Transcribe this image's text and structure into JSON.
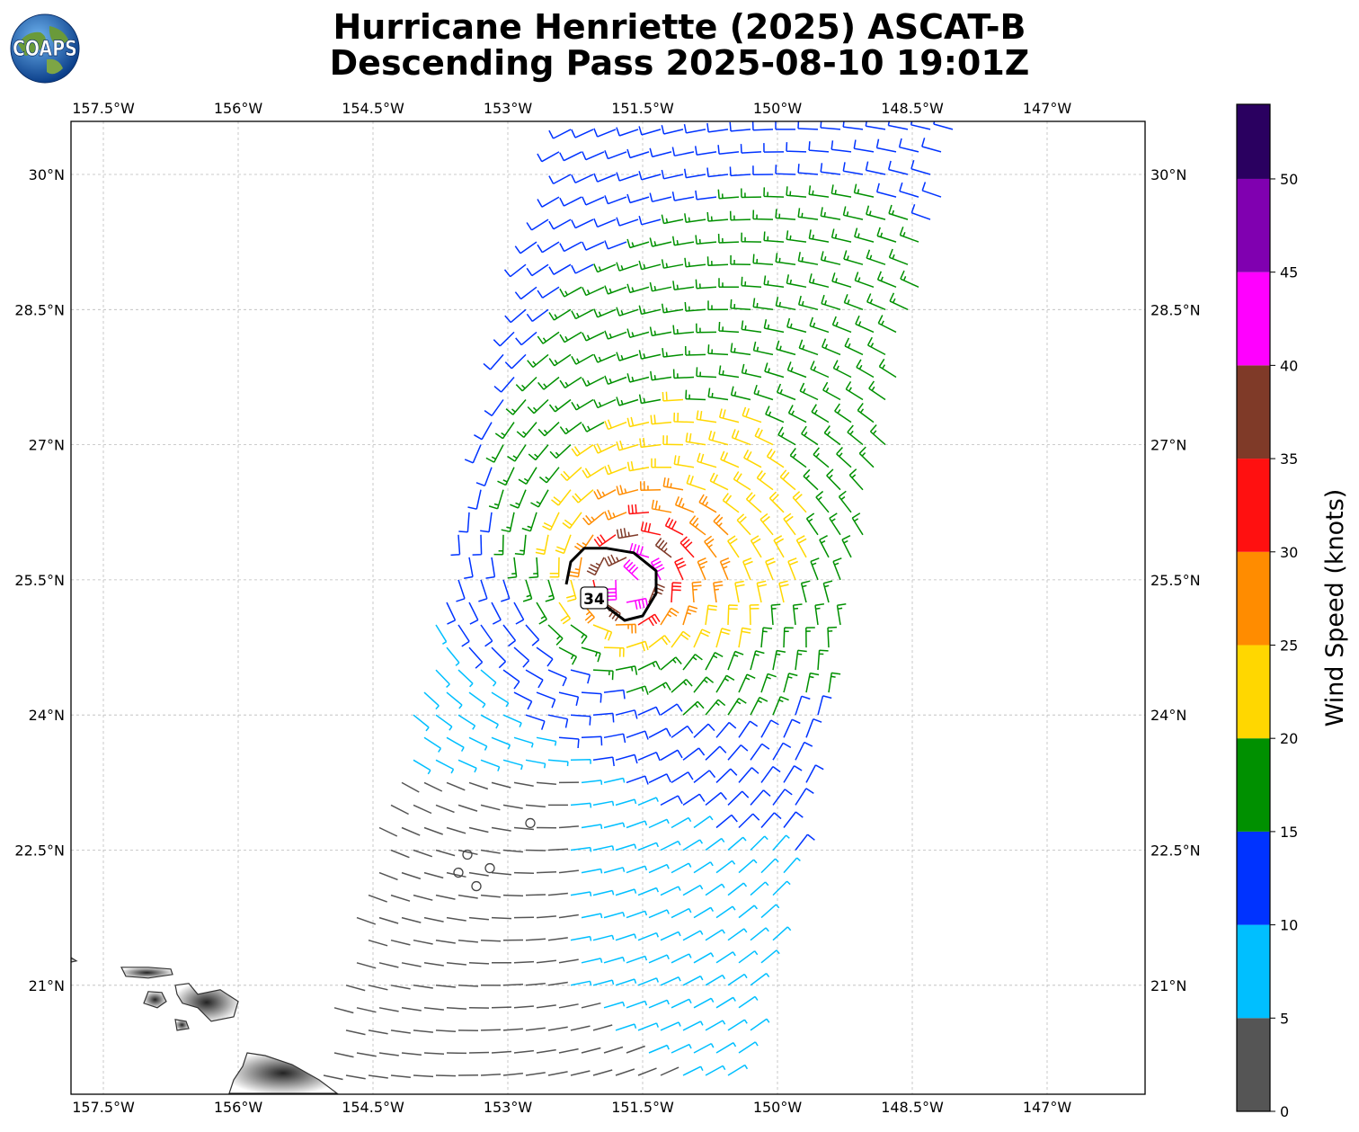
{
  "header": {
    "title_line1": "Hurricane Henriette (2025) ASCAT-B",
    "title_line2": "Descending Pass 2025-08-10 19:01Z",
    "logo_text": "COAPS"
  },
  "map": {
    "lon_range": [
      -158.0,
      -146.0
    ],
    "lat_range": [
      19.8,
      30.6
    ],
    "lon_ticks": [
      {
        "value": -157.5,
        "label": "157.5°W"
      },
      {
        "value": -156.0,
        "label": "156°W"
      },
      {
        "value": -154.5,
        "label": "154.5°W"
      },
      {
        "value": -153.0,
        "label": "153°W"
      },
      {
        "value": -151.5,
        "label": "151.5°W"
      },
      {
        "value": -150.0,
        "label": "150°W"
      },
      {
        "value": -148.5,
        "label": "148.5°W"
      },
      {
        "value": -147.0,
        "label": "147°W"
      }
    ],
    "lat_ticks": [
      {
        "value": 30.0,
        "label": "30°N"
      },
      {
        "value": 28.5,
        "label": "28.5°N"
      },
      {
        "value": 27.0,
        "label": "27°N"
      },
      {
        "value": 25.5,
        "label": "25.5°N"
      },
      {
        "value": 24.0,
        "label": "24°N"
      },
      {
        "value": 22.5,
        "label": "22.5°N"
      },
      {
        "value": 21.0,
        "label": "21°N"
      }
    ],
    "storm_center": {
      "lon": -151.65,
      "lat": 25.45
    },
    "contour_label": "34",
    "swath": {
      "corners": [
        {
          "lon": -152.4,
          "lat": 30.55
        },
        {
          "lon": -148.0,
          "lat": 30.55
        },
        {
          "lon": -150.4,
          "lat": 19.8
        },
        {
          "lon": -155.2,
          "lat": 19.8
        }
      ]
    },
    "land_fill": "#ffffff",
    "land_stroke": "#333333",
    "grid_color": "#bbbbbb"
  },
  "colorbar": {
    "label": "Wind Speed (knots)",
    "bins": [
      {
        "from": 0,
        "to": 5,
        "color": "#555555"
      },
      {
        "from": 5,
        "to": 10,
        "color": "#00bfff"
      },
      {
        "from": 10,
        "to": 15,
        "color": "#0033ff"
      },
      {
        "from": 15,
        "to": 20,
        "color": "#009000"
      },
      {
        "from": 20,
        "to": 25,
        "color": "#ffd700"
      },
      {
        "from": 25,
        "to": 30,
        "color": "#ff8c00"
      },
      {
        "from": 30,
        "to": 35,
        "color": "#ff1010"
      },
      {
        "from": 35,
        "to": 40,
        "color": "#7f3a28"
      },
      {
        "from": 40,
        "to": 45,
        "color": "#ff00ff"
      },
      {
        "from": 45,
        "to": 50,
        "color": "#8000b0"
      },
      {
        "from": 50,
        "to": 55,
        "color": "#2a0060"
      }
    ],
    "tick_labels": [
      "0",
      "5",
      "10",
      "15",
      "20",
      "25",
      "30",
      "35",
      "40",
      "45",
      "50"
    ],
    "max": 54
  }
}
